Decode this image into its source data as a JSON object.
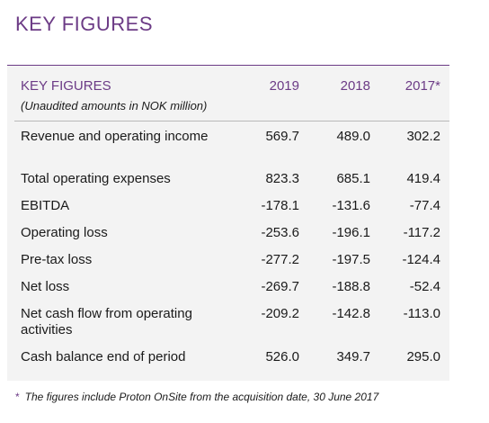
{
  "page": {
    "title": "KEY FIGURES"
  },
  "table": {
    "header_label": "KEY FIGURES",
    "header_sub": "(Unaudited amounts in NOK million)",
    "years": [
      "2019",
      "2018",
      "2017*"
    ],
    "rows": [
      {
        "label": "Revenue and operating income",
        "values": [
          "569.7",
          "489.0",
          "302.2"
        ]
      },
      {
        "label": "Total operating expenses",
        "values": [
          "823.3",
          "685.1",
          "419.4"
        ]
      },
      {
        "label": "EBITDA",
        "values": [
          "-178.1",
          "-131.6",
          "-77.4"
        ]
      },
      {
        "label": "Operating loss",
        "values": [
          "-253.6",
          "-196.1",
          "-117.2"
        ]
      },
      {
        "label": "Pre-tax loss",
        "values": [
          "-277.2",
          "-197.5",
          "-124.4"
        ]
      },
      {
        "label": "Net loss",
        "values": [
          "-269.7",
          "-188.8",
          "-52.4"
        ]
      },
      {
        "label": "Net cash flow from operating activities",
        "values": [
          "-209.2",
          "-142.8",
          "-113.0"
        ]
      },
      {
        "label": "Cash balance end of period",
        "values": [
          "526.0",
          "349.7",
          "295.0"
        ]
      }
    ]
  },
  "footnote": {
    "marker": "*",
    "text": "The figures include Proton OnSite from the acquisition date, 30 June 2017"
  },
  "colors": {
    "accent": "#6c3b86",
    "panel": "#f3f3f3",
    "text": "#1a1a1a"
  }
}
